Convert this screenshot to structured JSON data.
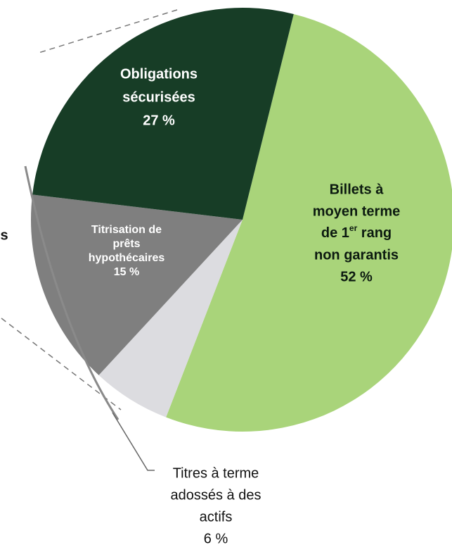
{
  "chart_data": {
    "type": "pie",
    "categories": [
      [
        "Billets à",
        "moyen terme",
        {
          "text": "de 1",
          "sup": "er",
          "after": " rang"
        },
        "non garantis"
      ],
      [
        "Titres à terme",
        "adossés à des",
        "actifs"
      ],
      [
        "Titrisation de",
        "prêts",
        "hypothécaires"
      ],
      [
        "Obligations",
        "sécurisées"
      ]
    ],
    "values": [
      52,
      6,
      15,
      27
    ],
    "value_labels": [
      "52 %",
      "6 %",
      "15 %",
      "27 %"
    ],
    "colors": [
      "#a9d47a",
      "#dcdce0",
      "#7f7f7f",
      "#173d26"
    ],
    "annotations": [
      "s"
    ]
  }
}
